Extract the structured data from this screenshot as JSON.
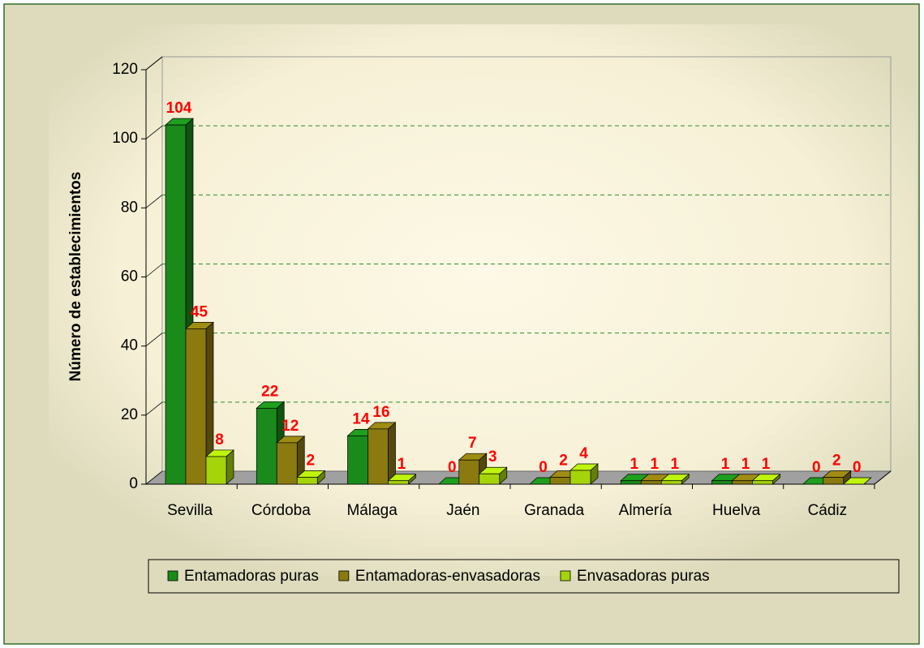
{
  "chart_data": {
    "type": "bar3d",
    "y_label": "Número de establecimientos",
    "categories": [
      "Sevilla",
      "Córdoba",
      "Málaga",
      "Jaén",
      "Granada",
      "Almería",
      "Huelva",
      "Cádiz"
    ],
    "series": [
      {
        "name": "Entamadoras puras",
        "color": "#1a8a1a",
        "values": [
          104,
          22,
          14,
          0,
          0,
          1,
          1,
          0
        ]
      },
      {
        "name": "Entamadoras-envasadoras",
        "color": "#8a7a10",
        "values": [
          45,
          12,
          16,
          7,
          2,
          1,
          1,
          2
        ]
      },
      {
        "name": "Envasadoras puras",
        "color": "#a6d40a",
        "values": [
          8,
          2,
          1,
          3,
          4,
          1,
          1,
          0
        ]
      }
    ],
    "ylim": [
      0,
      120
    ],
    "yticks": [
      0,
      20,
      40,
      60,
      80,
      100,
      120
    ],
    "grid": true,
    "legend": "bottom"
  }
}
